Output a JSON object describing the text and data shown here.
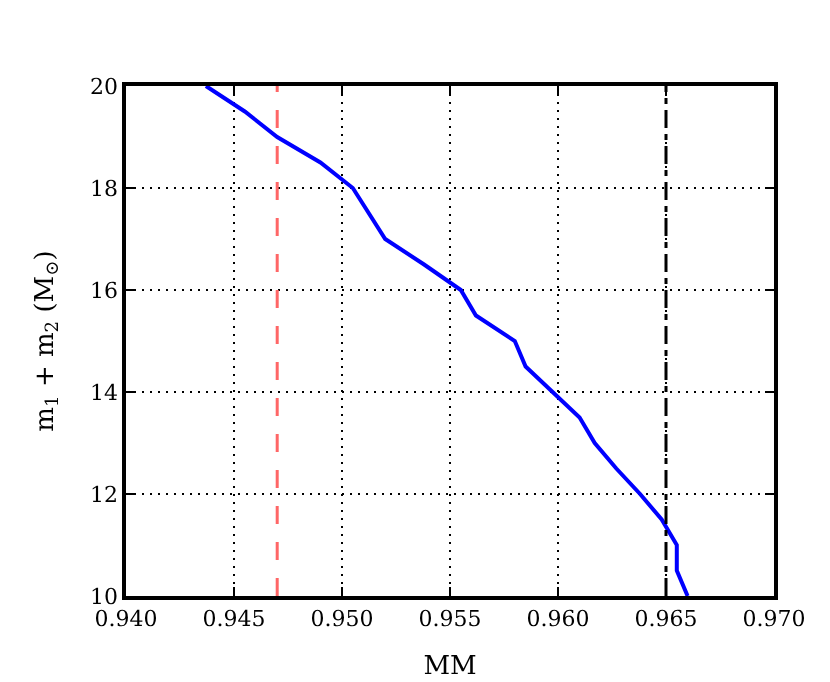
{
  "chart_data": {
    "type": "line",
    "xlabel": "MM",
    "ylabel": "m$_{1}$ + m$_{2}$ (M$_{⊙}$)",
    "x": [
      0.9437,
      0.9455,
      0.947,
      0.949,
      0.9505,
      0.952,
      0.9538,
      0.9555,
      0.9562,
      0.958,
      0.9585,
      0.961,
      0.9617,
      0.9627,
      0.9638,
      0.9648,
      0.9655,
      0.9655,
      0.966
    ],
    "series": [
      {
        "color": "#0000ff",
        "values": [
          20,
          19.5,
          19,
          18.5,
          18,
          17,
          16.5,
          16,
          15.5,
          15,
          14.5,
          13.5,
          13,
          12.5,
          12,
          11.5,
          11,
          10.5,
          10
        ]
      }
    ],
    "xlim": [
      0.94,
      0.97
    ],
    "xticks": [
      {
        "value": 0.94,
        "label": "0.940"
      },
      {
        "value": 0.945,
        "label": "0.945"
      },
      {
        "value": 0.95,
        "label": "0.950"
      },
      {
        "value": 0.955,
        "label": "0.955"
      },
      {
        "value": 0.96,
        "label": "0.960"
      },
      {
        "value": 0.965,
        "label": "0.965"
      },
      {
        "value": 0.97,
        "label": "0.970"
      }
    ],
    "ylim": [
      10,
      20
    ],
    "yticks": [
      10,
      12,
      14,
      16,
      18,
      20
    ],
    "ref_lines": [
      {
        "axis": "x",
        "value": 0.947,
        "color": "#ff6666",
        "line_style": "dashed"
      },
      {
        "axis": "x",
        "value": 0.965,
        "color": "#000000",
        "line_style": "dashdot"
      }
    ],
    "grid": true,
    "marker": "none",
    "line_style": "solid"
  }
}
